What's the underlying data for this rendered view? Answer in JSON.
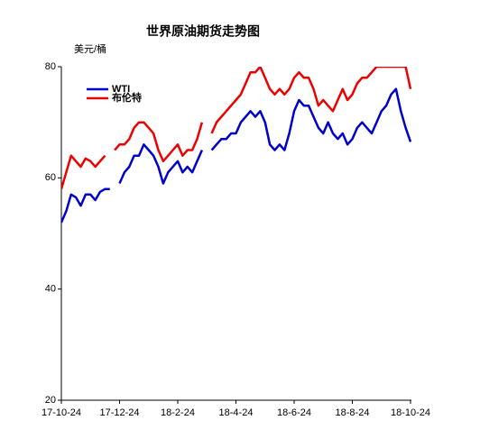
{
  "chart_data": {
    "type": "line",
    "title": "世界原油期货走势图",
    "y_label": "美元/桶",
    "categories": [
      "17-10-24",
      null,
      null,
      null,
      null,
      null,
      null,
      null,
      null,
      null,
      null,
      null,
      "17-12-24",
      null,
      null,
      null,
      null,
      null,
      null,
      null,
      null,
      null,
      null,
      null,
      "18-2-24",
      null,
      null,
      null,
      null,
      null,
      null,
      null,
      null,
      null,
      null,
      null,
      "18-4-24",
      null,
      null,
      null,
      null,
      null,
      null,
      null,
      null,
      null,
      null,
      null,
      "18-6-24",
      null,
      null,
      null,
      null,
      null,
      null,
      null,
      null,
      null,
      null,
      null,
      "18-8-24",
      null,
      null,
      null,
      null,
      null,
      null,
      null,
      null,
      null,
      null,
      null,
      "18-10-24"
    ],
    "series": [
      {
        "name": "WTI",
        "color": "#0000cc",
        "values": [
          52,
          54,
          57,
          56.5,
          55,
          57,
          57,
          56,
          57.5,
          58,
          58,
          null,
          59,
          61,
          62,
          64,
          64,
          66,
          65,
          64,
          62,
          59,
          61,
          62,
          63,
          61,
          62,
          61,
          63,
          65,
          null,
          65,
          66,
          67,
          67,
          68,
          68,
          70,
          71,
          72,
          71,
          72,
          70,
          66,
          65,
          66,
          65,
          68,
          72,
          74,
          73,
          73,
          71,
          69,
          68,
          70,
          68,
          67,
          68,
          66,
          67,
          69,
          70,
          69,
          68,
          70,
          72,
          73,
          75,
          76,
          72,
          69,
          66.5
        ]
      },
      {
        "name": "布伦特",
        "color": "#ee0000",
        "values": [
          58,
          61,
          64,
          63,
          62,
          63.5,
          63,
          62,
          63,
          64,
          null,
          65,
          66,
          66,
          67,
          69,
          70,
          70,
          69,
          68,
          65,
          63,
          64,
          65,
          66,
          64,
          65,
          65,
          67,
          70,
          null,
          68,
          70,
          71,
          72,
          73,
          74,
          75,
          77,
          79,
          79,
          80,
          78,
          76,
          75,
          76,
          75,
          76,
          78,
          79,
          78,
          78,
          76,
          73,
          74,
          73,
          72,
          74,
          76,
          74,
          75,
          77,
          78,
          78,
          79,
          80,
          80,
          80,
          80,
          80,
          80,
          80,
          76
        ]
      }
    ],
    "ylim": [
      20,
      80
    ],
    "yticks": [
      20,
      40,
      60,
      80
    ],
    "grid": false
  }
}
